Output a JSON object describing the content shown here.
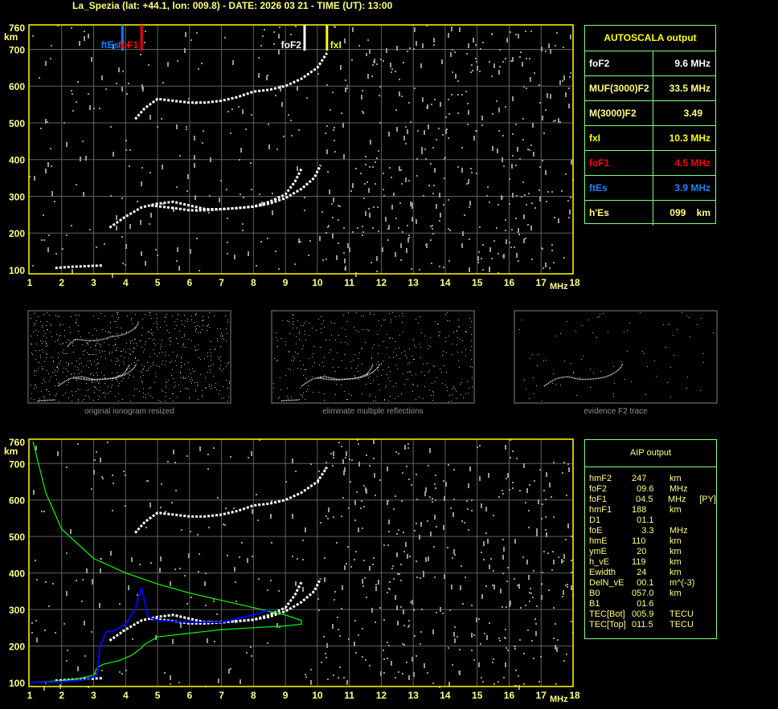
{
  "header": {
    "title": "La_Spezia (lat: +44.1, lon: 009.8) - DATE: 2026 03 21 - TIME (UT): 13:00"
  },
  "colors": {
    "frame": "#ffff00",
    "grid": "#606060",
    "table_border": "#80ff80",
    "foF2": "#ffffff",
    "fxI": "#ffff00",
    "foF1": "#ff0000",
    "ftEs": "#0080ff",
    "profile": "#0000ff",
    "model": "#00ff00"
  },
  "markers": [
    {
      "label": "ftEs",
      "freq": 3.9,
      "color": "#0080ff"
    },
    {
      "label": "foF1",
      "freq": 4.5,
      "color": "#ff0000"
    },
    {
      "label": "foF2",
      "freq": 9.6,
      "color": "#ffffff"
    },
    {
      "label": "fxI",
      "freq": 10.3,
      "color": "#ffff00"
    }
  ],
  "autoscala": {
    "title": "AUTOSCALA output",
    "rows": [
      {
        "label": "foF2",
        "value": "9.6 MHz",
        "color": "#ffffff"
      },
      {
        "label": "MUF(3000)F2",
        "value": "33.5 MHz",
        "color": "#ffff80"
      },
      {
        "label": "M(3000)F2",
        "value": "3.49   ",
        "color": "#ffff80"
      },
      {
        "label": "fxI",
        "value": "10.3 MHz",
        "color": "#ffff00"
      },
      {
        "label": "foF1",
        "value": "4.5 MHz",
        "color": "#ff0000"
      },
      {
        "label": "ftEs",
        "value": "3.9 MHz",
        "color": "#2080ff"
      },
      {
        "label": "h'Es",
        "value": "099    km",
        "color": "#ffff80"
      }
    ]
  },
  "aip": {
    "title": "AIP output",
    "rows": [
      [
        "hmF2",
        "247",
        "km",
        ""
      ],
      [
        "foF2",
        "  09.6",
        "MHz",
        ""
      ],
      [
        "foF1",
        "  04.5",
        "MHz",
        "[PY]"
      ],
      [
        "hmF1",
        "188",
        "km",
        ""
      ],
      [
        "D1",
        "  01.1",
        "",
        ""
      ],
      [
        "foE",
        "    3.3",
        "MHz",
        ""
      ],
      [
        "hmE",
        "110",
        "km",
        ""
      ],
      [
        "ymE",
        "  20",
        "km",
        ""
      ],
      [
        "h_vE",
        "119",
        "km",
        ""
      ],
      [
        "Ewidth",
        "  24",
        "km",
        ""
      ],
      [
        "DelN_vE",
        "  00.1",
        "m^(-3)",
        ""
      ],
      [
        "B0",
        "057.0",
        "km",
        ""
      ],
      [
        "B1",
        "  01.6",
        "",
        ""
      ],
      [
        "TEC[Bot]",
        "005.9",
        "TECU",
        ""
      ],
      [
        "TEC[Top]",
        "011.5",
        "TECU",
        ""
      ]
    ]
  },
  "thumbnails": [
    {
      "caption": "original ionogram resized"
    },
    {
      "caption": "eliminate multiple reflections"
    },
    {
      "caption": "evidence F2 trace"
    }
  ],
  "chart_data": [
    {
      "type": "scatter",
      "title": "",
      "xlabel": "MHz",
      "ylabel": "km",
      "xlim": [
        1,
        18
      ],
      "ylim": [
        100,
        760
      ],
      "grid": true,
      "xticks": [
        "1",
        "2",
        "3",
        "4",
        "5",
        "6",
        "7",
        "8",
        "9",
        "10",
        "11",
        "12",
        "13",
        "14",
        "15",
        "16",
        "17",
        "18"
      ],
      "yticks": [
        "100",
        "200",
        "300",
        "400",
        "500",
        "600",
        "700",
        "760"
      ],
      "series": [
        {
          "id": "f2-multiple",
          "x": [
            4.3,
            4.6,
            5,
            5.5,
            6,
            6.5,
            7,
            7.5,
            8,
            8.5,
            9,
            9.5,
            10,
            10.3
          ],
          "y": [
            510,
            540,
            565,
            560,
            555,
            555,
            560,
            570,
            585,
            590,
            600,
            620,
            650,
            690
          ]
        },
        {
          "id": "f2-o",
          "x": [
            3.5,
            4,
            4.5,
            5,
            5.5,
            6,
            6.5,
            7,
            7.5,
            8,
            8.5,
            9,
            9.5,
            9.9,
            10.1
          ],
          "y": [
            215,
            245,
            270,
            280,
            285,
            275,
            265,
            265,
            268,
            272,
            280,
            295,
            320,
            350,
            385
          ]
        },
        {
          "id": "f2-x",
          "x": [
            4.8,
            5.5,
            6,
            6.5,
            7,
            7.5,
            8,
            8.5,
            9,
            9.3,
            9.5
          ],
          "y": [
            275,
            268,
            262,
            262,
            265,
            268,
            272,
            285,
            305,
            340,
            375
          ]
        },
        {
          "id": "es",
          "x": [
            1.8,
            2.3,
            2.8,
            3.3
          ],
          "y": [
            105,
            108,
            110,
            112
          ]
        }
      ]
    },
    {
      "type": "line",
      "xlabel": "MHz",
      "ylabel": "km",
      "xlim": [
        1,
        18
      ],
      "ylim": [
        100,
        760
      ],
      "grid": true,
      "series": [
        {
          "id": "model-profile",
          "color": "#00ff00",
          "x": [
            1.1,
            1.5,
            2,
            2.5,
            3,
            4,
            5,
            6,
            7,
            8,
            9,
            9.5,
            9.5,
            9,
            8,
            7,
            6,
            5,
            4.6,
            4.5,
            4.2,
            3.8,
            3.3,
            3.1,
            3,
            2.5,
            2,
            1
          ],
          "y": [
            760,
            620,
            520,
            480,
            440,
            400,
            370,
            345,
            325,
            305,
            285,
            270,
            260,
            255,
            250,
            245,
            235,
            225,
            205,
            195,
            175,
            160,
            150,
            140,
            120,
            110,
            105,
            100
          ]
        },
        {
          "id": "true-height-profile",
          "color": "#0000ff",
          "x": [
            1,
            2,
            2.8,
            3.1,
            3.2,
            3.4,
            3.6,
            4,
            4.3,
            4.5,
            4.7,
            5,
            6,
            7,
            8,
            8.5
          ],
          "y": [
            100,
            102,
            108,
            120,
            200,
            240,
            240,
            260,
            300,
            360,
            280,
            270,
            265,
            265,
            285,
            300
          ]
        }
      ]
    }
  ]
}
